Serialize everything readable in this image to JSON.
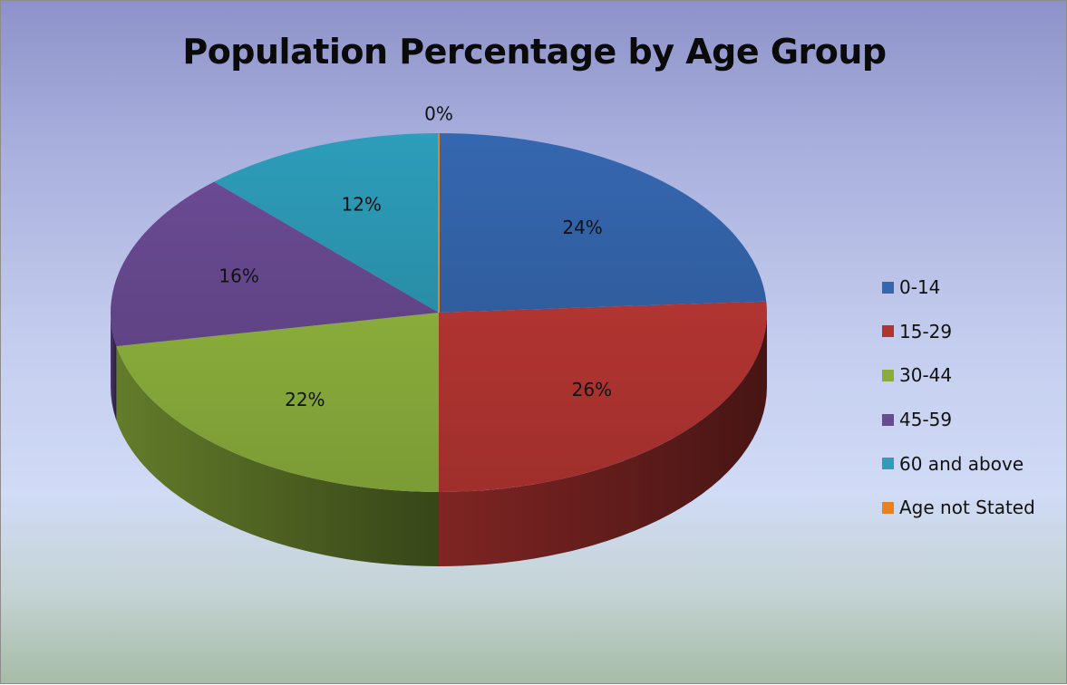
{
  "chart_data": {
    "type": "pie",
    "title": "Population Percentage by Age Group",
    "categories": [
      "0-14",
      "15-29",
      "30-44",
      "45-59",
      "60 and above",
      "Age not Stated"
    ],
    "values": [
      24,
      26,
      22,
      16,
      12,
      0
    ],
    "data_labels": [
      "24%",
      "26%",
      "22%",
      "16%",
      "12%",
      "0%"
    ],
    "colors": [
      "#3567b0",
      "#b13431",
      "#89ac3b",
      "#6a4a93",
      "#2d9db9",
      "#e8821e"
    ],
    "legend_position": "right",
    "style": "3d"
  }
}
